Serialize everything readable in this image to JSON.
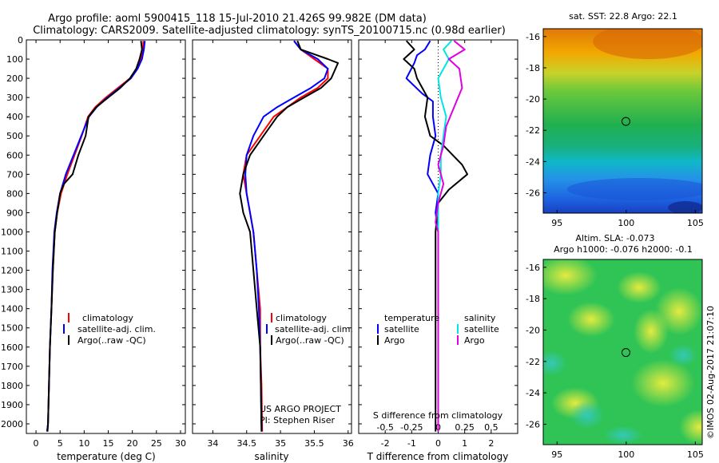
{
  "header": {
    "line1": "Argo profile: aoml 5900415_118 15-Jul-2010 21.426S 99.982E (DM data)",
    "line2": "Climatology: CARS2009. Satellite-adjusted climatology: synTS_20100715.nc (0.98d earlier)"
  },
  "colors": {
    "climatology": "#ff0000",
    "satellite": "#0000ff",
    "argo": "#000000",
    "sat_salinity": "#00e5e5",
    "argo_salinity": "#e000e0"
  },
  "chart_data": [
    {
      "type": "line",
      "name": "temperature-profile",
      "xlabel": "temperature (deg C)",
      "xlim": [
        -2,
        31
      ],
      "xticks": [
        0,
        5,
        10,
        15,
        20,
        25,
        30
      ],
      "ylim": [
        0,
        2050
      ],
      "yticks": [
        0,
        100,
        200,
        300,
        400,
        500,
        600,
        700,
        800,
        900,
        1000,
        1100,
        1200,
        1300,
        1400,
        1500,
        1600,
        1700,
        1800,
        1900,
        2000
      ],
      "legend": [
        "climatology",
        "satellite-adj. clim.",
        "Argo(..raw -QC)"
      ],
      "series": [
        {
          "name": "climatology",
          "color": "red",
          "x": [
            22.3,
            22.2,
            21.8,
            21.0,
            19.5,
            17.0,
            14.5,
            12.3,
            10.8,
            9.5,
            8.0,
            6.5,
            5.2,
            4.4,
            3.9,
            3.5,
            3.2,
            2.9,
            2.7,
            2.5,
            2.3
          ],
          "y": [
            5,
            50,
            100,
            150,
            200,
            250,
            300,
            350,
            400,
            500,
            600,
            700,
            800,
            900,
            1000,
            1200,
            1400,
            1600,
            1800,
            2000,
            2040
          ]
        },
        {
          "name": "satellite-adj. clim.",
          "color": "blue",
          "x": [
            22.6,
            22.4,
            22.0,
            21.1,
            19.7,
            17.3,
            14.8,
            12.6,
            11.0,
            9.4,
            7.8,
            6.2,
            5.0,
            4.3,
            3.8,
            3.4,
            3.2,
            2.9,
            2.7,
            2.5,
            2.3
          ],
          "y": [
            5,
            50,
            100,
            150,
            200,
            250,
            300,
            350,
            400,
            500,
            600,
            700,
            800,
            900,
            1000,
            1200,
            1400,
            1600,
            1800,
            2000,
            2040
          ]
        },
        {
          "name": "Argo(..raw -QC)",
          "color": "black",
          "x": [
            21.8,
            22.0,
            21.5,
            20.8,
            19.5,
            17.5,
            15.0,
            12.5,
            10.9,
            10.3,
            8.8,
            7.6,
            5.8,
            5.0,
            4.4,
            3.9,
            3.5,
            3.2,
            2.9,
            2.7,
            2.5,
            2.4
          ],
          "y": [
            5,
            50,
            100,
            150,
            200,
            250,
            300,
            350,
            400,
            500,
            600,
            700,
            750,
            800,
            900,
            1000,
            1200,
            1400,
            1600,
            1800,
            2000,
            2040
          ]
        }
      ]
    },
    {
      "type": "line",
      "name": "salinity-profile",
      "xlabel": "salinity",
      "xlim": [
        33.7,
        36.05
      ],
      "xticks": [
        34,
        34.5,
        35,
        35.5,
        36
      ],
      "xticklabels": [
        "34",
        "34.5",
        "35",
        "35.5",
        "36"
      ],
      "ylim": [
        0,
        2050
      ],
      "legend": [
        "climatology",
        "satellite-adj. clim.",
        "Argo(..raw -QC)"
      ],
      "annotation": [
        "US ARGO PROJECT",
        "PI: Stephen Riser"
      ],
      "series": [
        {
          "name": "climatology",
          "color": "red",
          "x": [
            35.2,
            35.3,
            35.5,
            35.7,
            35.7,
            35.55,
            35.3,
            35.1,
            34.9,
            34.7,
            34.5,
            34.45,
            34.5,
            34.55,
            34.6,
            34.65,
            34.7,
            34.7,
            34.72,
            34.73
          ],
          "y": [
            5,
            50,
            100,
            150,
            200,
            250,
            300,
            350,
            400,
            500,
            600,
            700,
            800,
            900,
            1000,
            1200,
            1400,
            1600,
            1800,
            2040
          ]
        },
        {
          "name": "satellite-adj. clim.",
          "color": "blue",
          "x": [
            35.2,
            35.3,
            35.55,
            35.7,
            35.65,
            35.45,
            35.2,
            34.95,
            34.75,
            34.6,
            34.5,
            34.48,
            34.5,
            34.55,
            34.6,
            34.65,
            34.68,
            34.7,
            34.71,
            34.72
          ],
          "y": [
            5,
            50,
            100,
            150,
            200,
            250,
            300,
            350,
            400,
            500,
            600,
            700,
            800,
            900,
            1000,
            1200,
            1400,
            1600,
            1800,
            2040
          ]
        },
        {
          "name": "Argo(..raw -QC)",
          "color": "black",
          "x": [
            35.25,
            35.3,
            35.7,
            35.85,
            35.75,
            35.6,
            35.35,
            35.1,
            34.95,
            34.75,
            34.55,
            34.45,
            34.4,
            34.45,
            34.55,
            34.6,
            34.65,
            34.7,
            34.71,
            34.72
          ],
          "y": [
            5,
            50,
            100,
            120,
            200,
            250,
            300,
            350,
            400,
            500,
            600,
            700,
            800,
            900,
            1000,
            1200,
            1400,
            1600,
            1800,
            2040
          ]
        }
      ]
    },
    {
      "type": "line",
      "name": "difference-profile",
      "xlabel": "T difference from climatology",
      "top_xlabel": "S difference from climatology",
      "xlim": [
        -3,
        3
      ],
      "xticks": [
        -2,
        -1,
        0,
        1,
        2
      ],
      "xticklabels": [
        "-2",
        "-1",
        "0",
        "1",
        "2"
      ],
      "top_xticks": [
        -2,
        -1,
        0,
        1,
        2
      ],
      "top_xticklabels": [
        "-0.5",
        "-0.25",
        "0",
        "0.25",
        "0.5"
      ],
      "ylim": [
        0,
        2050
      ],
      "legend_left_title": "temperature",
      "legend_right_title": "salinity",
      "legend": [
        "satellite",
        "Argo",
        "satellite",
        "Argo"
      ],
      "series": [
        {
          "name": "satellite",
          "color": "blue",
          "x": [
            -0.3,
            -0.5,
            -0.8,
            -0.9,
            -1.2,
            -0.6,
            -0.2,
            -0.2,
            -0.1,
            -0.3,
            -0.4,
            0.0,
            -0.1,
            0.0,
            0.0,
            0.0,
            0.0,
            0.0,
            0.0
          ],
          "y": [
            5,
            50,
            80,
            120,
            200,
            280,
            320,
            400,
            500,
            600,
            700,
            800,
            900,
            1000,
            1200,
            1400,
            1600,
            1800,
            2040
          ]
        },
        {
          "name": "Argo",
          "color": "black",
          "x": [
            -1.2,
            -0.9,
            -1.3,
            -0.9,
            -0.8,
            -0.4,
            -0.5,
            -0.3,
            0.2,
            0.9,
            1.1,
            0.4,
            0.0,
            -0.1,
            -0.1,
            -0.1,
            -0.1,
            -0.1
          ],
          "y": [
            5,
            50,
            100,
            150,
            200,
            300,
            400,
            500,
            550,
            650,
            700,
            780,
            850,
            1000,
            1200,
            1500,
            1800,
            2040
          ]
        },
        {
          "name": "satellite",
          "color": "cyan",
          "x": [
            0.5,
            0.2,
            0.4,
            0.0,
            0.1,
            0.3,
            0.2,
            0.1,
            0.1,
            0.0,
            0.0,
            0.0,
            0.0,
            0.0,
            0.0,
            0.0
          ],
          "y": [
            5,
            50,
            100,
            200,
            300,
            400,
            500,
            600,
            700,
            800,
            900,
            1000,
            1200,
            1400,
            1600,
            2040
          ]
        },
        {
          "name": "Argo",
          "color": "magenta",
          "x": [
            0.6,
            1.0,
            0.4,
            0.8,
            0.9,
            0.6,
            0.3,
            0.2,
            0.0,
            0.2,
            0.0,
            -0.1,
            0.0,
            0.0,
            0.0
          ],
          "y": [
            5,
            50,
            100,
            150,
            250,
            350,
            450,
            550,
            650,
            750,
            850,
            950,
            1000,
            1500,
            2040
          ]
        }
      ]
    },
    {
      "type": "heatmap",
      "name": "sst-map",
      "title": "sat. SST: 22.8  Argo: 22.1",
      "xticks": [
        95,
        100,
        105
      ],
      "yticks": [
        -16,
        -18,
        -20,
        -22,
        -24,
        -26
      ],
      "xlim": [
        94,
        105.5
      ],
      "ylim": [
        -27.3,
        -15.5
      ],
      "marker": {
        "x": 99.98,
        "y": -21.43
      }
    },
    {
      "type": "heatmap",
      "name": "sla-map",
      "title": [
        "Altim. SLA: -0.073",
        "Argo h1000: -0.076 h2000: -0.1"
      ],
      "xticks": [
        95,
        100,
        105
      ],
      "yticks": [
        -16,
        -18,
        -20,
        -22,
        -24,
        -26
      ],
      "xlim": [
        94,
        105.5
      ],
      "ylim": [
        -27.3,
        -15.5
      ],
      "marker": {
        "x": 99.98,
        "y": -21.43
      }
    }
  ],
  "footer": {
    "side_text": "©IMOS 02-Aug-2017 21:07:10"
  }
}
